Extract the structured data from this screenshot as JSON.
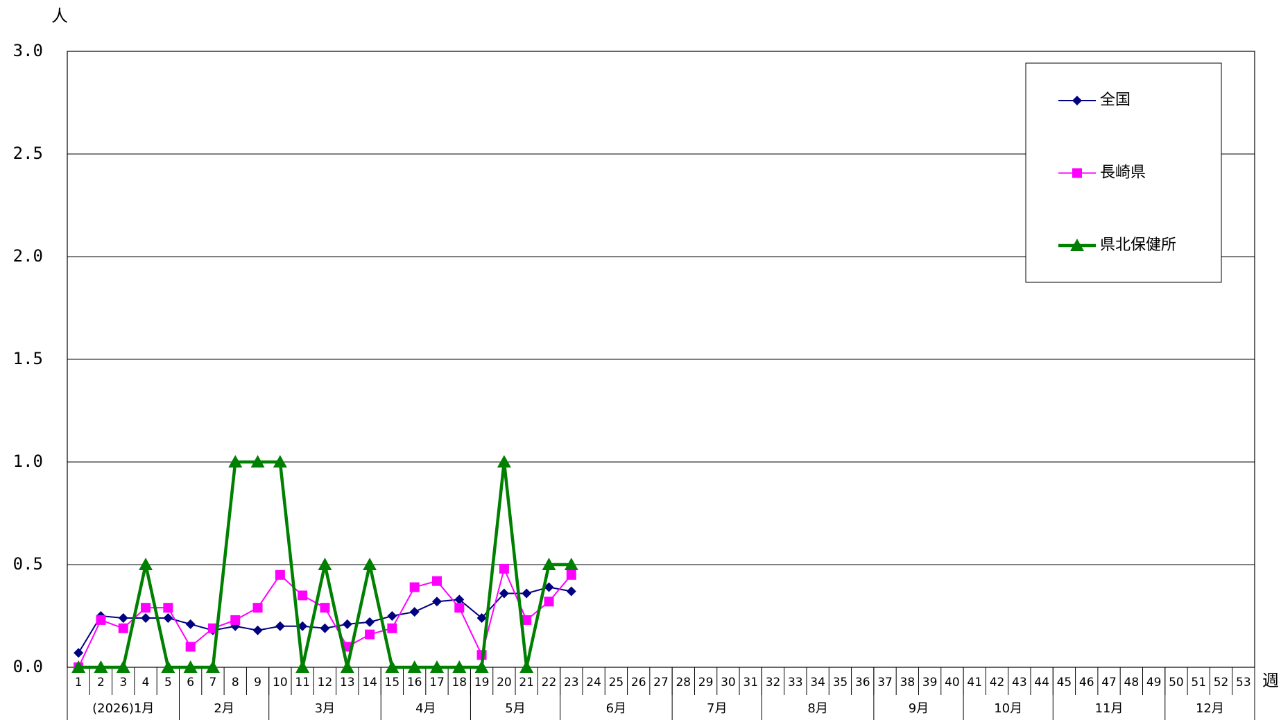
{
  "chart_data": {
    "type": "line",
    "y_unit_label": "人",
    "x_unit_label": "週",
    "categories": [
      "1",
      "2",
      "3",
      "4",
      "5",
      "6",
      "7",
      "8",
      "9",
      "10",
      "11",
      "12",
      "13",
      "14",
      "15",
      "16",
      "17",
      "18",
      "19",
      "20",
      "21",
      "22",
      "23",
      "24",
      "25",
      "26",
      "27",
      "28",
      "29",
      "30",
      "31",
      "32",
      "33",
      "34",
      "35",
      "36",
      "37",
      "38",
      "39",
      "40",
      "41",
      "42",
      "43",
      "44",
      "45",
      "46",
      "47",
      "48",
      "49",
      "50",
      "51",
      "52",
      "53"
    ],
    "x_groups": [
      {
        "label": "(2026)1月",
        "span": 5
      },
      {
        "label": "2月",
        "span": 4
      },
      {
        "label": "3月",
        "span": 5
      },
      {
        "label": "4月",
        "span": 4
      },
      {
        "label": "5月",
        "span": 4
      },
      {
        "label": "6月",
        "span": 5
      },
      {
        "label": "7月",
        "span": 4
      },
      {
        "label": "8月",
        "span": 5
      },
      {
        "label": "9月",
        "span": 4
      },
      {
        "label": "10月",
        "span": 4
      },
      {
        "label": "11月",
        "span": 5
      },
      {
        "label": "12月",
        "span": 4
      }
    ],
    "series": [
      {
        "name": "全国",
        "color": "#000080",
        "marker": "diamond",
        "values": [
          0.07,
          0.25,
          0.24,
          0.24,
          0.24,
          0.21,
          0.18,
          0.2,
          0.18,
          0.2,
          0.2,
          0.19,
          0.21,
          0.22,
          0.25,
          0.27,
          0.32,
          0.33,
          0.24,
          0.36,
          0.36,
          0.39,
          0.37,
          null,
          null,
          null,
          null,
          null,
          null,
          null,
          null,
          null,
          null,
          null,
          null,
          null,
          null,
          null,
          null,
          null,
          null,
          null,
          null,
          null,
          null,
          null,
          null,
          null,
          null,
          null,
          null,
          null,
          null
        ]
      },
      {
        "name": "長崎県",
        "color": "#ff00ff",
        "marker": "square",
        "values": [
          0.0,
          0.23,
          0.19,
          0.29,
          0.29,
          0.1,
          0.19,
          0.23,
          0.29,
          0.45,
          0.35,
          0.29,
          0.1,
          0.16,
          0.19,
          0.39,
          0.42,
          0.29,
          0.06,
          0.48,
          0.23,
          0.32,
          0.45,
          null,
          null,
          null,
          null,
          null,
          null,
          null,
          null,
          null,
          null,
          null,
          null,
          null,
          null,
          null,
          null,
          null,
          null,
          null,
          null,
          null,
          null,
          null,
          null,
          null,
          null,
          null,
          null,
          null,
          null
        ]
      },
      {
        "name": "県北保健所",
        "color": "#008000",
        "marker": "triangle",
        "values": [
          0,
          0,
          0,
          0.5,
          0,
          0,
          0,
          1,
          1,
          1,
          0,
          0.5,
          0,
          0.5,
          0,
          0,
          0,
          0,
          0,
          1,
          0,
          0.5,
          0.5,
          null,
          null,
          null,
          null,
          null,
          null,
          null,
          null,
          null,
          null,
          null,
          null,
          null,
          null,
          null,
          null,
          null,
          null,
          null,
          null,
          null,
          null,
          null,
          null,
          null,
          null,
          null,
          null,
          null,
          null
        ]
      }
    ],
    "ylim": [
      0,
      3
    ],
    "yticks": [
      {
        "value": 0,
        "label": "0.0"
      },
      {
        "value": 0.5,
        "label": "0.5"
      },
      {
        "value": 1,
        "label": "1.0"
      },
      {
        "value": 1.5,
        "label": "1.5"
      },
      {
        "value": 2,
        "label": "2.0"
      },
      {
        "value": 2.5,
        "label": "2.5"
      },
      {
        "value": 3,
        "label": "3.0"
      }
    ],
    "grid": true,
    "legend": "upper right"
  }
}
